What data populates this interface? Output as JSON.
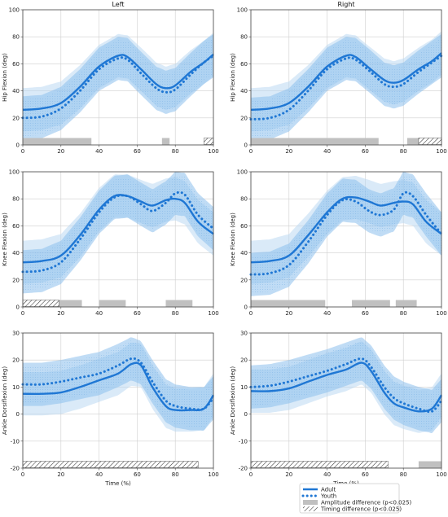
{
  "colors": {
    "adult": "#1f77d4",
    "band_outer": "#bcd9f3",
    "band_inner": "#8dc0ec",
    "amplitude": "#c0c0c0",
    "timing": "#333333"
  },
  "chart_data": {
    "type": "line",
    "grid": true,
    "legend": {
      "placement": "bottom-right",
      "entries": [
        {
          "label": "Adult",
          "style": "solid-line"
        },
        {
          "label": "Youth",
          "style": "dotted-line"
        },
        {
          "label": "Amplitude difference  (p<0.025)",
          "style": "grey-bar"
        },
        {
          "label": "Timing difference  (p<0.025)",
          "style": "hatched-bar"
        }
      ]
    },
    "columns": [
      "Left",
      "Right"
    ],
    "rows": [
      {
        "ylabel": "Hip Flexion (deg)",
        "ylim": [
          0,
          100
        ],
        "yticks": [
          0,
          20,
          40,
          60,
          80,
          100
        ],
        "xticks": [
          0,
          20,
          40,
          60,
          80,
          100
        ],
        "xlabel": "",
        "panels": [
          {
            "title": "Left",
            "adult": [
              [
                0,
                26
              ],
              [
                10,
                27
              ],
              [
                20,
                31
              ],
              [
                30,
                43
              ],
              [
                40,
                58
              ],
              [
                50,
                66
              ],
              [
                55,
                65
              ],
              [
                62,
                56
              ],
              [
                70,
                45
              ],
              [
                75,
                42
              ],
              [
                80,
                44
              ],
              [
                88,
                54
              ],
              [
                95,
                61
              ],
              [
                100,
                67
              ]
            ],
            "youth": [
              [
                0,
                20
              ],
              [
                10,
                21
              ],
              [
                20,
                27
              ],
              [
                30,
                40
              ],
              [
                40,
                56
              ],
              [
                50,
                64
              ],
              [
                55,
                63
              ],
              [
                62,
                53
              ],
              [
                70,
                42
              ],
              [
                75,
                39
              ],
              [
                80,
                41
              ],
              [
                88,
                52
              ],
              [
                95,
                61
              ],
              [
                100,
                66
              ]
            ],
            "band_sd": 16,
            "amplitude": [
              [
                0,
                36
              ],
              [
                73,
                77
              ]
            ],
            "timing": [
              [
                95,
                100
              ]
            ]
          },
          {
            "title": "Right",
            "adult": [
              [
                0,
                26
              ],
              [
                10,
                27
              ],
              [
                20,
                31
              ],
              [
                30,
                43
              ],
              [
                40,
                58
              ],
              [
                50,
                66
              ],
              [
                55,
                65
              ],
              [
                62,
                57
              ],
              [
                70,
                48
              ],
              [
                75,
                46
              ],
              [
                80,
                48
              ],
              [
                88,
                56
              ],
              [
                95,
                62
              ],
              [
                100,
                68
              ]
            ],
            "youth": [
              [
                0,
                19
              ],
              [
                10,
                20
              ],
              [
                20,
                26
              ],
              [
                30,
                40
              ],
              [
                40,
                56
              ],
              [
                50,
                64
              ],
              [
                55,
                63
              ],
              [
                62,
                55
              ],
              [
                70,
                45
              ],
              [
                75,
                43
              ],
              [
                80,
                45
              ],
              [
                88,
                54
              ],
              [
                95,
                61
              ],
              [
                100,
                66
              ]
            ],
            "band_sd": 16,
            "amplitude": [
              [
                0,
                67
              ],
              [
                82,
                100
              ]
            ],
            "timing": [
              [
                88,
                100
              ]
            ]
          }
        ]
      },
      {
        "ylabel": "Knee Flexion (deg)",
        "ylim": [
          0,
          100
        ],
        "yticks": [
          0,
          20,
          40,
          60,
          80,
          100
        ],
        "xticks": [
          0,
          20,
          40,
          60,
          80,
          100
        ],
        "xlabel": "",
        "panels": [
          {
            "title": "",
            "adult": [
              [
                0,
                33
              ],
              [
                10,
                34
              ],
              [
                20,
                38
              ],
              [
                30,
                53
              ],
              [
                40,
                72
              ],
              [
                48,
                82
              ],
              [
                55,
                82
              ],
              [
                62,
                78
              ],
              [
                68,
                75
              ],
              [
                75,
                79
              ],
              [
                80,
                80
              ],
              [
                85,
                77
              ],
              [
                92,
                63
              ],
              [
                100,
                54
              ]
            ],
            "youth": [
              [
                0,
                26
              ],
              [
                10,
                27
              ],
              [
                20,
                33
              ],
              [
                30,
                50
              ],
              [
                40,
                70
              ],
              [
                48,
                81
              ],
              [
                55,
                82
              ],
              [
                62,
                76
              ],
              [
                68,
                71
              ],
              [
                75,
                77
              ],
              [
                80,
                84
              ],
              [
                85,
                83
              ],
              [
                92,
                68
              ],
              [
                100,
                58
              ]
            ],
            "band_sd": 16,
            "amplitude": [
              [
                0,
                31
              ],
              [
                40,
                54
              ],
              [
                75,
                89
              ]
            ],
            "timing": [
              [
                0,
                19
              ]
            ]
          },
          {
            "title": "",
            "adult": [
              [
                0,
                33
              ],
              [
                10,
                34
              ],
              [
                20,
                38
              ],
              [
                30,
                53
              ],
              [
                40,
                70
              ],
              [
                48,
                80
              ],
              [
                55,
                81
              ],
              [
                62,
                78
              ],
              [
                68,
                75
              ],
              [
                75,
                77
              ],
              [
                80,
                78
              ],
              [
                85,
                76
              ],
              [
                92,
                63
              ],
              [
                100,
                54
              ]
            ],
            "youth": [
              [
                0,
                24
              ],
              [
                10,
                25
              ],
              [
                20,
                31
              ],
              [
                30,
                48
              ],
              [
                40,
                68
              ],
              [
                48,
                79
              ],
              [
                55,
                78
              ],
              [
                62,
                71
              ],
              [
                68,
                68
              ],
              [
                75,
                72
              ],
              [
                80,
                84
              ],
              [
                85,
                82
              ],
              [
                92,
                68
              ],
              [
                100,
                54
              ]
            ],
            "band_sd": 16,
            "amplitude": [
              [
                0,
                39
              ],
              [
                53,
                73
              ],
              [
                76,
                87
              ]
            ],
            "timing": []
          }
        ]
      },
      {
        "ylabel": "Ankle Dorsiflexion (deg)",
        "ylim": [
          -20,
          30
        ],
        "yticks": [
          -20,
          -10,
          0,
          10,
          20,
          30
        ],
        "xticks": [
          0,
          20,
          40,
          60,
          80,
          100
        ],
        "xlabel": "Time (%)",
        "panels": [
          {
            "title": "",
            "adult": [
              [
                0,
                7.5
              ],
              [
                10,
                7.5
              ],
              [
                20,
                8
              ],
              [
                30,
                10
              ],
              [
                40,
                12.5
              ],
              [
                50,
                15
              ],
              [
                57,
                18.5
              ],
              [
                62,
                18
              ],
              [
                68,
                10
              ],
              [
                75,
                3
              ],
              [
                80,
                1.5
              ],
              [
                88,
                1.5
              ],
              [
                95,
                2
              ],
              [
                100,
                7
              ]
            ],
            "youth": [
              [
                0,
                11
              ],
              [
                10,
                11
              ],
              [
                20,
                12
              ],
              [
                30,
                13.5
              ],
              [
                40,
                15
              ],
              [
                50,
                18
              ],
              [
                57,
                20.5
              ],
              [
                62,
                19
              ],
              [
                68,
                12
              ],
              [
                75,
                5
              ],
              [
                80,
                3
              ],
              [
                88,
                2
              ],
              [
                95,
                2
              ],
              [
                100,
                6
              ]
            ],
            "band_sd": 8,
            "amplitude": [],
            "timing": [
              [
                0,
                92
              ]
            ]
          },
          {
            "title": "",
            "adult": [
              [
                0,
                8.5
              ],
              [
                10,
                8.5
              ],
              [
                20,
                9.5
              ],
              [
                30,
                12
              ],
              [
                40,
                14.5
              ],
              [
                50,
                16.5
              ],
              [
                58,
                19
              ],
              [
                63,
                16
              ],
              [
                70,
                8
              ],
              [
                75,
                4
              ],
              [
                80,
                2.5
              ],
              [
                88,
                1
              ],
              [
                95,
                2
              ],
              [
                100,
                7
              ]
            ],
            "youth": [
              [
                0,
                10
              ],
              [
                10,
                10.5
              ],
              [
                20,
                12
              ],
              [
                30,
                14
              ],
              [
                40,
                16
              ],
              [
                50,
                18.5
              ],
              [
                58,
                20.5
              ],
              [
                63,
                17.5
              ],
              [
                70,
                10
              ],
              [
                75,
                6
              ],
              [
                80,
                4
              ],
              [
                88,
                2
              ],
              [
                95,
                1
              ],
              [
                100,
                5
              ]
            ],
            "band_sd": 8,
            "amplitude": [
              [
                88,
                100
              ]
            ],
            "timing": [
              [
                0,
                72
              ]
            ]
          }
        ]
      }
    ]
  }
}
